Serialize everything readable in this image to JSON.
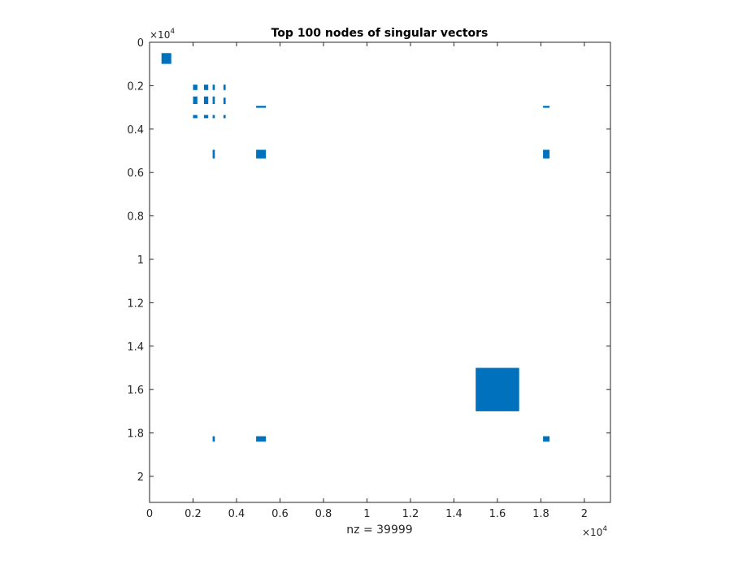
{
  "chart_data": {
    "type": "scatter",
    "title": "Top 100 nodes of singular vectors",
    "xlabel": "nz = 39999",
    "ylabel": "",
    "xlim": [
      0,
      2.12
    ],
    "ylim": [
      0,
      2.12
    ],
    "y_reversed": true,
    "scale_multiplier": {
      "base": "×10",
      "exponent": "4"
    },
    "xticks": [
      0,
      0.2,
      0.4,
      0.6,
      0.8,
      1,
      1.2,
      1.4,
      1.6,
      1.8,
      2
    ],
    "yticks": [
      0,
      0.2,
      0.4,
      0.6,
      0.8,
      1,
      1.2,
      1.4,
      1.6,
      1.8,
      2
    ],
    "xtick_labels": [
      "0",
      "0.2",
      "0.4",
      "0.6",
      "0.8",
      "1",
      "1.2",
      "1.4",
      "1.6",
      "1.8",
      "2"
    ],
    "ytick_labels": [
      "0",
      "0.2",
      "0.4",
      "0.6",
      "0.8",
      "1",
      "1.2",
      "1.4",
      "1.6",
      "1.8",
      "2"
    ],
    "grid": false,
    "marker_color": "#0072BD",
    "clusters": [
      {
        "x": [
          0.055,
          0.1
        ],
        "y": [
          0.05,
          0.1
        ]
      },
      {
        "x": [
          1.5,
          1.7
        ],
        "y": [
          1.5,
          1.7
        ]
      },
      {
        "x": [
          0.2,
          0.22
        ],
        "y": [
          0.195,
          0.22
        ]
      },
      {
        "x": [
          0.2,
          0.22
        ],
        "y": [
          0.25,
          0.285
        ]
      },
      {
        "x": [
          0.2,
          0.22
        ],
        "y": [
          0.335,
          0.35
        ]
      },
      {
        "x": [
          0.25,
          0.27
        ],
        "y": [
          0.195,
          0.22
        ]
      },
      {
        "x": [
          0.25,
          0.27
        ],
        "y": [
          0.25,
          0.285
        ]
      },
      {
        "x": [
          0.25,
          0.27
        ],
        "y": [
          0.335,
          0.35
        ]
      },
      {
        "x": [
          0.29,
          0.3
        ],
        "y": [
          0.195,
          0.22
        ]
      },
      {
        "x": [
          0.29,
          0.3
        ],
        "y": [
          0.25,
          0.285
        ]
      },
      {
        "x": [
          0.29,
          0.3
        ],
        "y": [
          0.335,
          0.35
        ]
      },
      {
        "x": [
          0.34,
          0.35
        ],
        "y": [
          0.195,
          0.22
        ]
      },
      {
        "x": [
          0.34,
          0.35
        ],
        "y": [
          0.255,
          0.285
        ]
      },
      {
        "x": [
          0.34,
          0.35
        ],
        "y": [
          0.335,
          0.35
        ]
      },
      {
        "x": [
          0.49,
          0.535
        ],
        "y": [
          0.293,
          0.302
        ]
      },
      {
        "x": [
          1.81,
          1.84
        ],
        "y": [
          0.293,
          0.302
        ]
      },
      {
        "x": [
          0.29,
          0.3
        ],
        "y": [
          0.495,
          0.535
        ]
      },
      {
        "x": [
          0.49,
          0.535
        ],
        "y": [
          0.495,
          0.535
        ]
      },
      {
        "x": [
          1.81,
          1.84
        ],
        "y": [
          0.495,
          0.535
        ]
      },
      {
        "x": [
          0.29,
          0.3
        ],
        "y": [
          1.815,
          1.84
        ]
      },
      {
        "x": [
          0.49,
          0.535
        ],
        "y": [
          1.815,
          1.84
        ]
      },
      {
        "x": [
          1.81,
          1.84
        ],
        "y": [
          1.815,
          1.84
        ]
      }
    ]
  }
}
